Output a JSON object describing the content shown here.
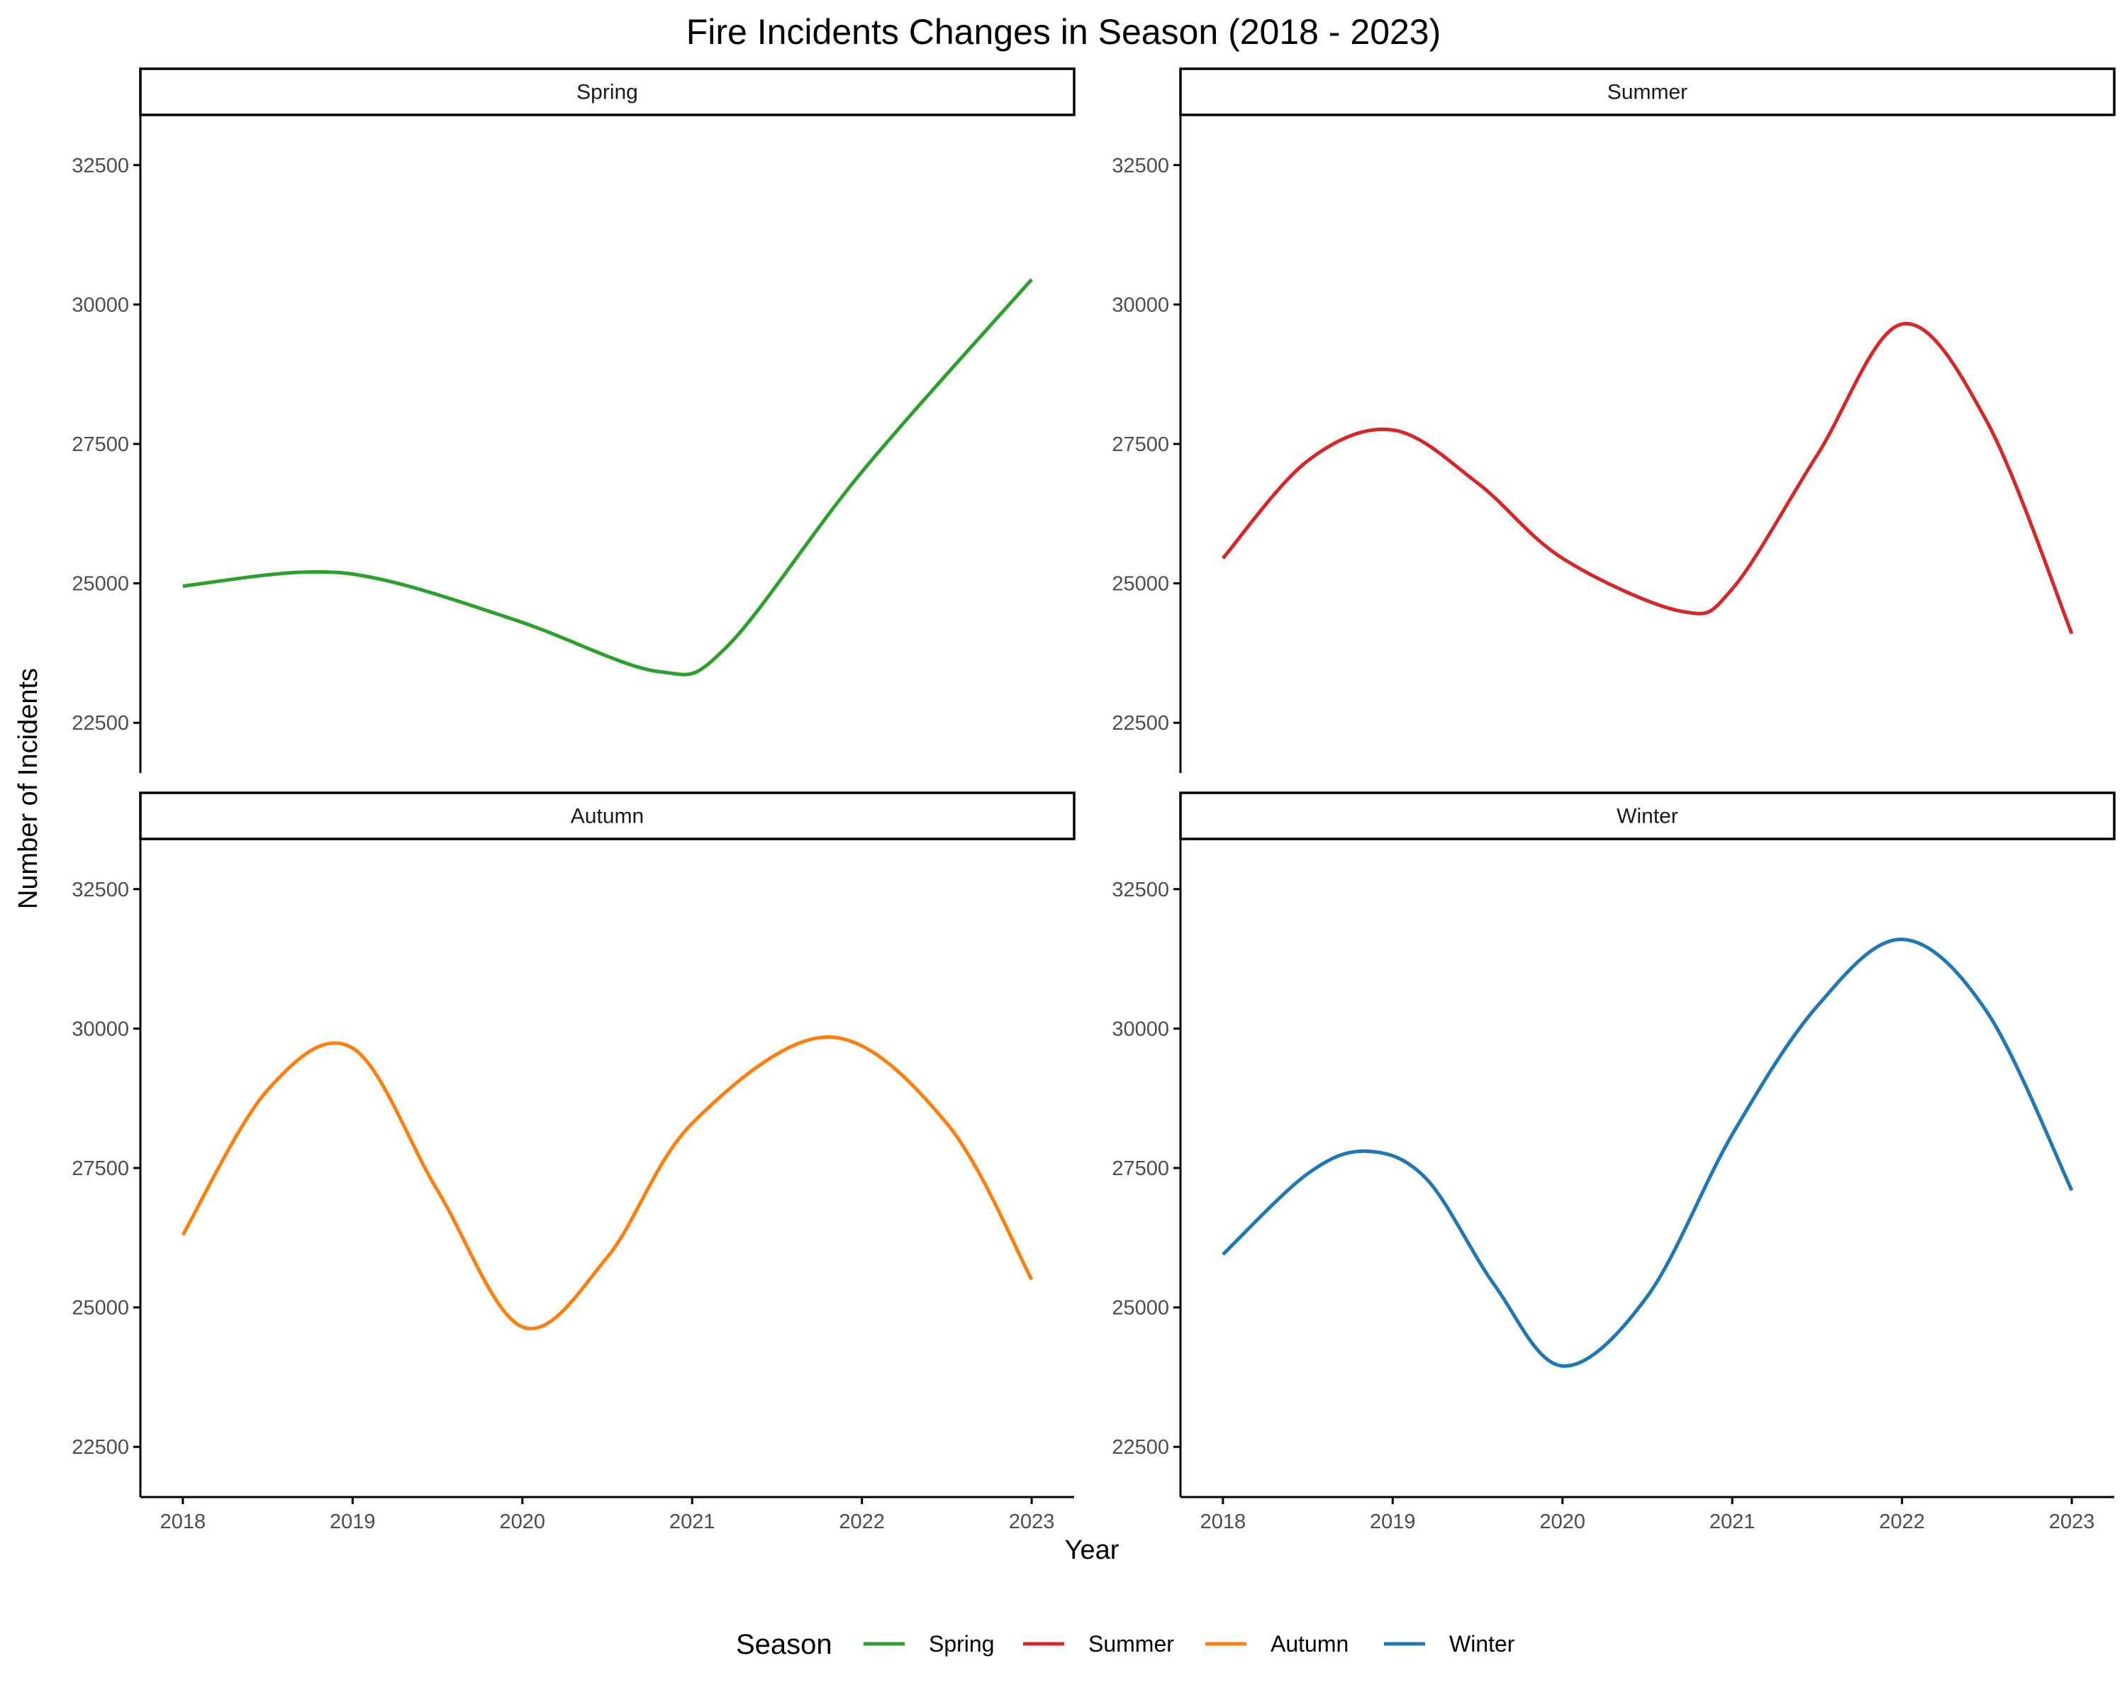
{
  "chart_data": {
    "type": "line",
    "title": "Fire Incidents Changes in Season (2018 - 2023)",
    "xlabel": "Year",
    "ylabel": "Number of Incidents",
    "x": [
      2018,
      2019,
      2020,
      2021,
      2022,
      2023
    ],
    "x_ticks": [
      "2018",
      "2019",
      "2020",
      "2021",
      "2022",
      "2023"
    ],
    "y_ticks": [
      "22500",
      "25000",
      "27500",
      "30000",
      "32500"
    ],
    "xlim": [
      2017.75,
      2023.25
    ],
    "ylim": [
      21600,
      33400
    ],
    "grid": false,
    "legend": {
      "title": "Season",
      "position": "bottom"
    },
    "panels": [
      {
        "name": "Spring",
        "color": "#2ca02c",
        "points": [
          [
            2018,
            24950
          ],
          [
            2018.7,
            25200
          ],
          [
            2019.2,
            25050
          ],
          [
            2020,
            24300
          ],
          [
            2020.8,
            23420
          ],
          [
            2021.2,
            23850
          ],
          [
            2022,
            27000
          ],
          [
            2023,
            30450
          ]
        ]
      },
      {
        "name": "Summer",
        "color": "#d62728",
        "points": [
          [
            2018,
            25450
          ],
          [
            2018.5,
            27200
          ],
          [
            2019,
            27750
          ],
          [
            2019.5,
            26800
          ],
          [
            2020,
            25450
          ],
          [
            2020.7,
            24500
          ],
          [
            2021,
            24900
          ],
          [
            2021.5,
            27300
          ],
          [
            2022,
            29650
          ],
          [
            2022.5,
            27900
          ],
          [
            2023,
            24100
          ]
        ]
      },
      {
        "name": "Autumn",
        "color": "#ff7f0e",
        "points": [
          [
            2018,
            26300
          ],
          [
            2018.5,
            28900
          ],
          [
            2019,
            29650
          ],
          [
            2019.5,
            27100
          ],
          [
            2020,
            24650
          ],
          [
            2020.5,
            25900
          ],
          [
            2021,
            28300
          ],
          [
            2021.8,
            29850
          ],
          [
            2022.5,
            28300
          ],
          [
            2023,
            25500
          ]
        ]
      },
      {
        "name": "Winter",
        "color": "#1f77b4",
        "points": [
          [
            2018,
            25950
          ],
          [
            2018.5,
            27400
          ],
          [
            2018.85,
            27800
          ],
          [
            2019.2,
            27300
          ],
          [
            2019.6,
            25400
          ],
          [
            2020,
            23950
          ],
          [
            2020.5,
            25200
          ],
          [
            2021,
            28100
          ],
          [
            2021.5,
            30400
          ],
          [
            2022,
            31600
          ],
          [
            2022.5,
            30300
          ],
          [
            2023,
            27100
          ]
        ]
      }
    ]
  }
}
